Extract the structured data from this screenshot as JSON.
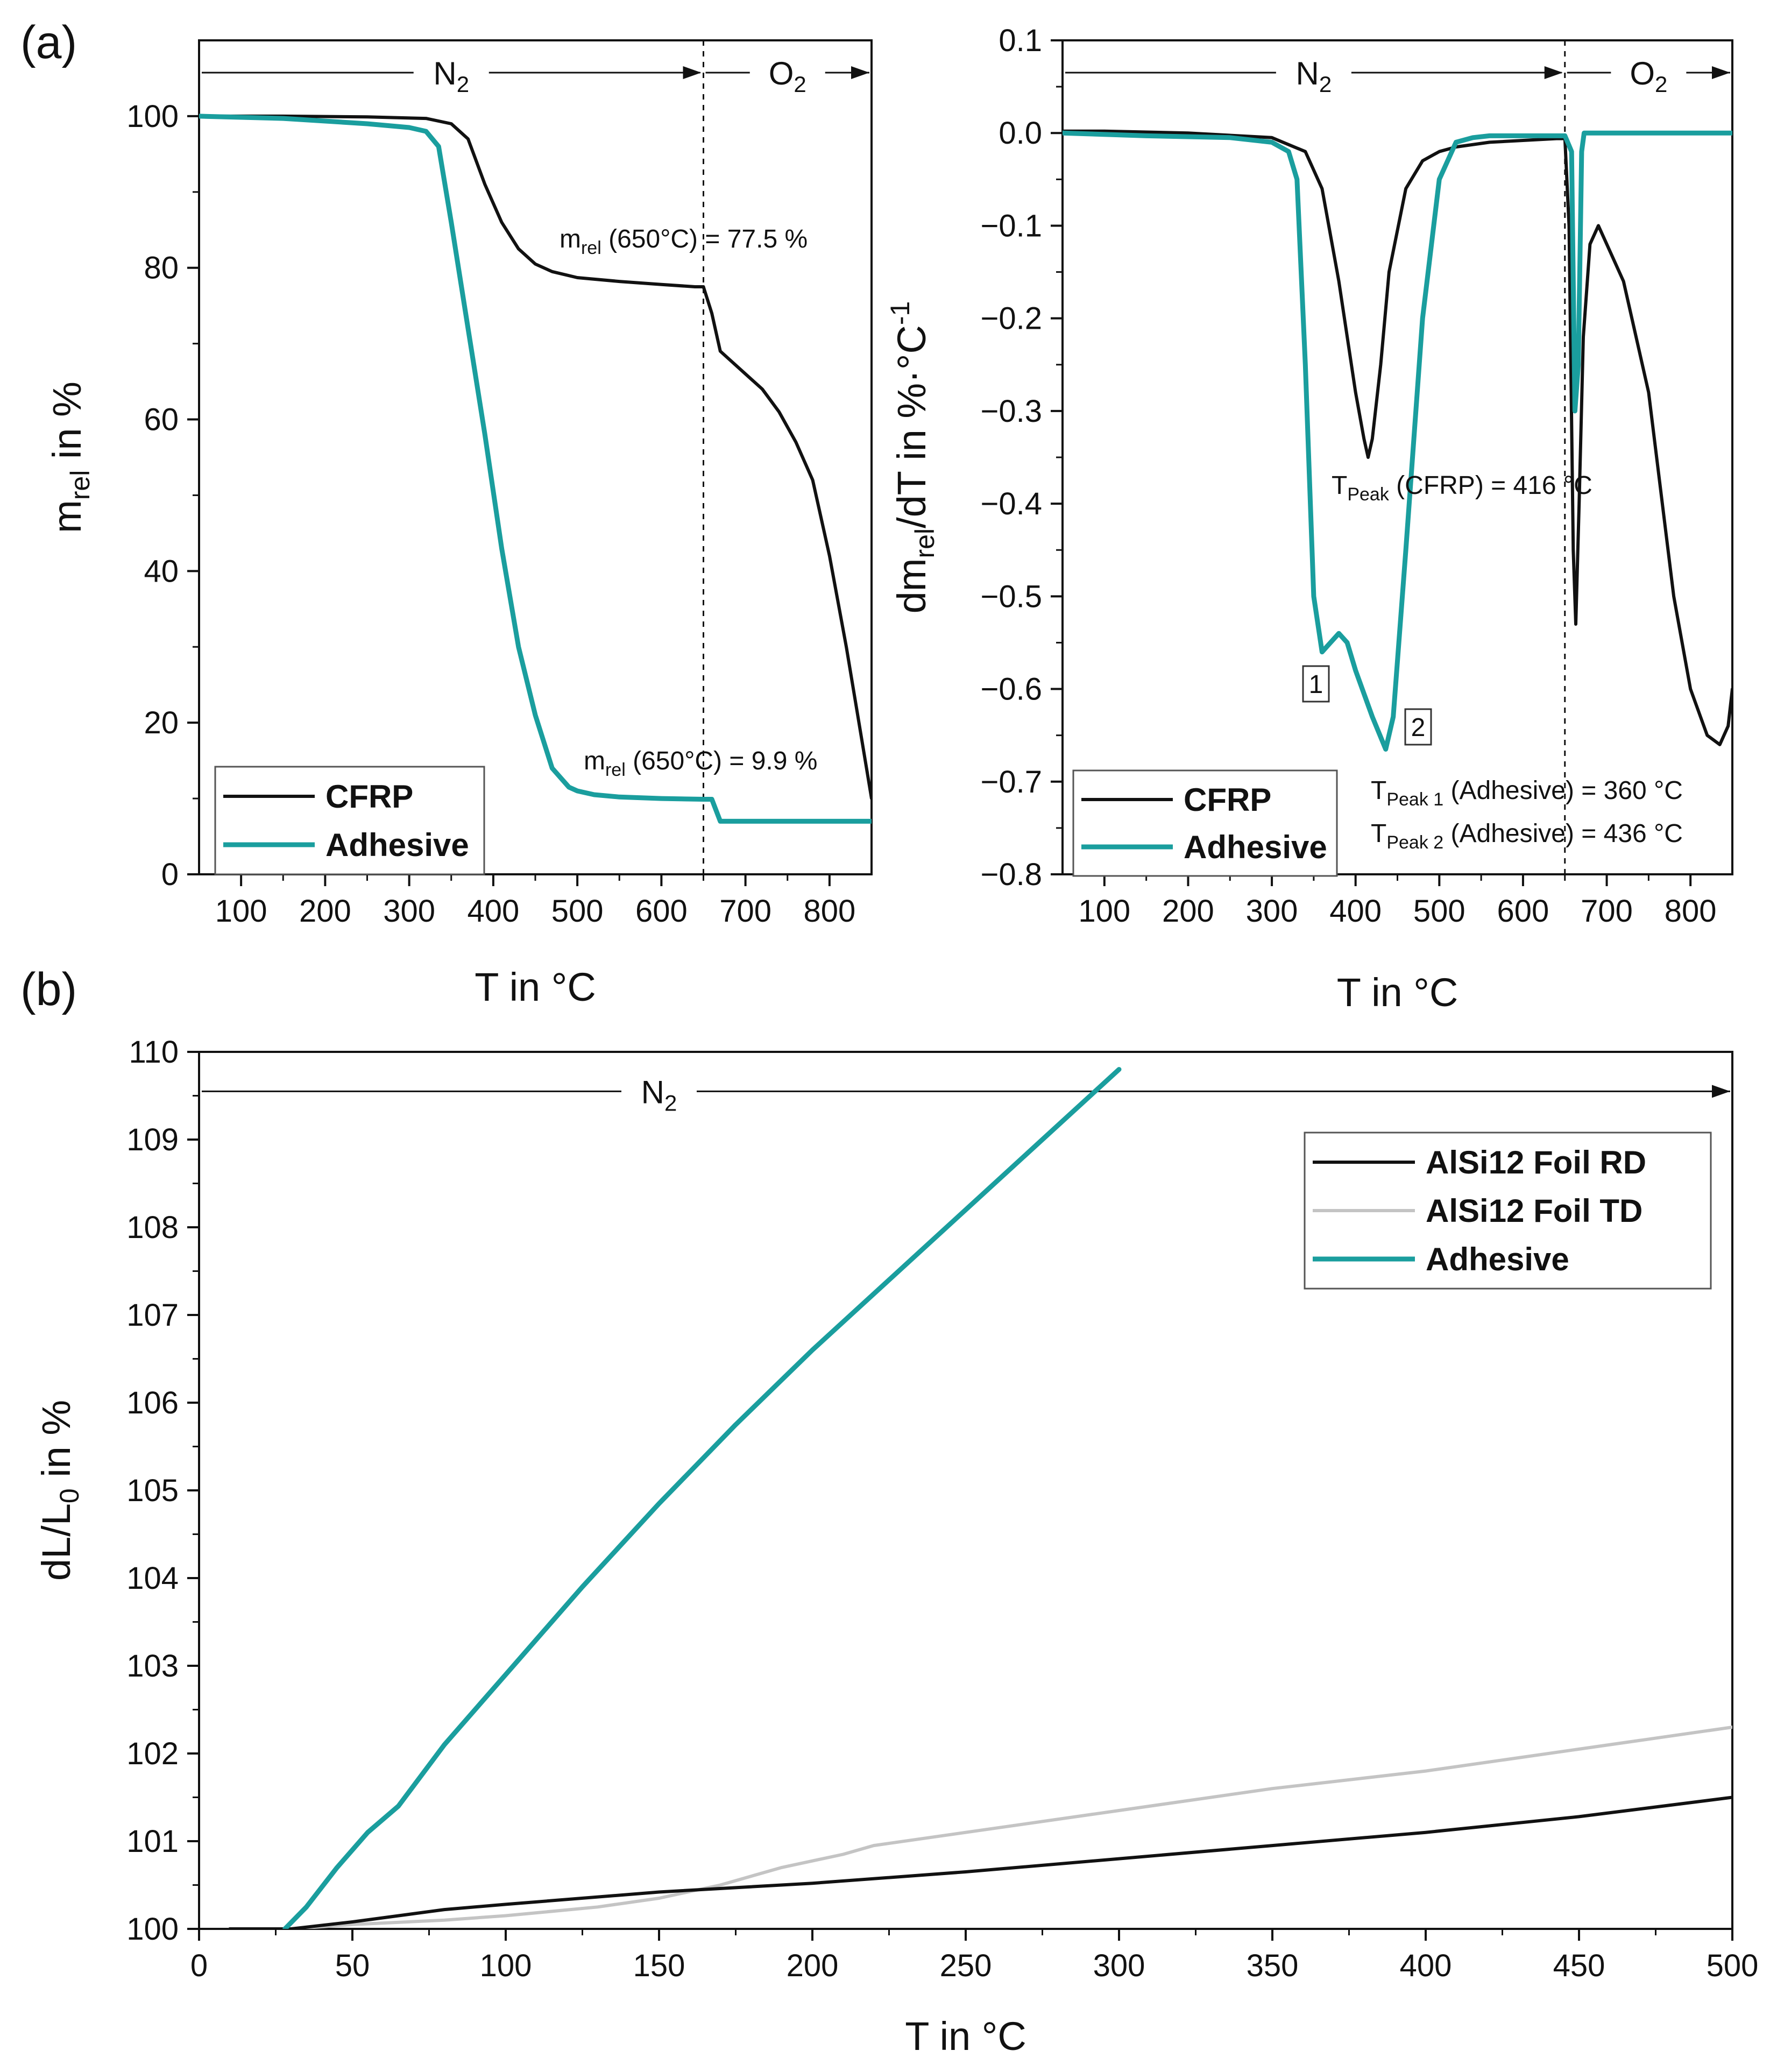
{
  "panels": {
    "a": "(a)",
    "b": "(b)"
  },
  "colors": {
    "cfrp": "#111111",
    "adhesive": "#1a9e9e",
    "foil_rd": "#111111",
    "foil_td": "#c4c4c4",
    "axis": "#111111"
  },
  "chart_data": [
    {
      "id": "tga",
      "type": "line",
      "xlabel": "T in °C",
      "ylabel": {
        "base": "m",
        "sub": "rel",
        "rest": " in %"
      },
      "xlim": [
        50,
        850
      ],
      "ylim": [
        0,
        110
      ],
      "xticks": [
        100,
        200,
        300,
        400,
        500,
        600,
        700,
        800
      ],
      "yticks": [
        0,
        20,
        40,
        60,
        80,
        100
      ],
      "switch_T": 650,
      "atmosphere": {
        "left": {
          "base": "N",
          "sub": "2"
        },
        "right": {
          "base": "O",
          "sub": "2"
        }
      },
      "legend": [
        "CFRP",
        "Adhesive"
      ],
      "series": [
        {
          "name": "CFRP",
          "x": [
            50,
            150,
            250,
            320,
            350,
            370,
            390,
            410,
            430,
            450,
            470,
            500,
            550,
            600,
            640,
            650,
            660,
            670,
            680,
            700,
            720,
            740,
            760,
            780,
            800,
            820,
            835,
            850
          ],
          "y": [
            100,
            100,
            99.9,
            99.7,
            99,
            97,
            91,
            86,
            82.5,
            80.5,
            79.5,
            78.7,
            78.2,
            77.8,
            77.5,
            77.5,
            74,
            69,
            68,
            66,
            64,
            61,
            57,
            52,
            42,
            30,
            20,
            10
          ]
        },
        {
          "name": "Adhesive",
          "x": [
            50,
            150,
            250,
            300,
            320,
            335,
            350,
            370,
            390,
            410,
            430,
            450,
            470,
            490,
            500,
            520,
            550,
            600,
            650,
            660,
            670,
            680,
            700,
            750,
            800,
            850
          ],
          "y": [
            100,
            99.7,
            99,
            98.5,
            98,
            96,
            86,
            72,
            58,
            43,
            30,
            21,
            14,
            11.5,
            11,
            10.5,
            10.2,
            10,
            9.9,
            9.9,
            7,
            7,
            7,
            7,
            7,
            7
          ]
        }
      ],
      "annotations": [
        {
          "base": "m",
          "sub": "rel",
          "rest": " (650°C) = 77.5 %"
        },
        {
          "base": "m",
          "sub": "rel",
          "rest": " (650°C) = 9.9 %"
        }
      ]
    },
    {
      "id": "dtg",
      "type": "line",
      "xlabel": "T in °C",
      "ylabel": {
        "p1": "dm",
        "sub": "rel",
        "p2": "/dT in %·°C",
        "sup": "-1"
      },
      "xlim": [
        50,
        850
      ],
      "ylim": [
        -0.8,
        0.1
      ],
      "xticks": [
        100,
        200,
        300,
        400,
        500,
        600,
        700,
        800
      ],
      "yticks": [
        0.1,
        0.0,
        -0.1,
        -0.2,
        -0.3,
        -0.4,
        -0.5,
        -0.6,
        -0.7,
        -0.8
      ],
      "ytick_labels": [
        "0.1",
        "0.0",
        "−0.1",
        "−0.2",
        "−0.3",
        "−0.4",
        "−0.5",
        "−0.6",
        "−0.7",
        "−0.8"
      ],
      "switch_T": 650,
      "atmosphere": {
        "left": {
          "base": "N",
          "sub": "2"
        },
        "right": {
          "base": "O",
          "sub": "2"
        }
      },
      "legend": [
        "CFRP",
        "Adhesive"
      ],
      "series": [
        {
          "name": "CFRP",
          "x": [
            50,
            100,
            200,
            300,
            340,
            360,
            380,
            400,
            410,
            415,
            420,
            430,
            440,
            460,
            480,
            500,
            520,
            560,
            600,
            640,
            650,
            655,
            660,
            663,
            667,
            672,
            680,
            690,
            700,
            720,
            750,
            780,
            800,
            820,
            835,
            845,
            850
          ],
          "y": [
            0.002,
            0.002,
            0,
            -0.005,
            -0.02,
            -0.06,
            -0.16,
            -0.28,
            -0.33,
            -0.35,
            -0.33,
            -0.25,
            -0.15,
            -0.06,
            -0.03,
            -0.02,
            -0.015,
            -0.01,
            -0.008,
            -0.006,
            -0.006,
            -0.1,
            -0.45,
            -0.53,
            -0.4,
            -0.22,
            -0.12,
            -0.1,
            -0.12,
            -0.16,
            -0.28,
            -0.5,
            -0.6,
            -0.65,
            -0.66,
            -0.64,
            -0.6
          ]
        },
        {
          "name": "Adhesive",
          "x": [
            50,
            150,
            250,
            300,
            320,
            330,
            340,
            350,
            360,
            370,
            380,
            390,
            400,
            420,
            436,
            445,
            460,
            480,
            500,
            520,
            540,
            560,
            600,
            650,
            658,
            662,
            666,
            670,
            673,
            700,
            800,
            850
          ],
          "y": [
            0,
            -0.003,
            -0.005,
            -0.01,
            -0.02,
            -0.05,
            -0.25,
            -0.5,
            -0.56,
            -0.55,
            -0.54,
            -0.55,
            -0.58,
            -0.63,
            -0.665,
            -0.63,
            -0.45,
            -0.2,
            -0.05,
            -0.01,
            -0.005,
            -0.003,
            -0.003,
            -0.003,
            -0.02,
            -0.3,
            -0.25,
            -0.02,
            0,
            0,
            0,
            0
          ]
        }
      ],
      "annotations": [
        {
          "base": "T",
          "sub": "Peak",
          "rest": " (CFRP) = 416 °C"
        },
        {
          "base": "T",
          "sub": "Peak 1",
          "rest": " (Adhesive) = 360 °C"
        },
        {
          "base": "T",
          "sub": "Peak 2",
          "rest": " (Adhesive) = 436 °C"
        }
      ],
      "peak_labels": [
        "1",
        "2"
      ]
    },
    {
      "id": "dil",
      "type": "line",
      "xlabel": "T in °C",
      "ylabel": {
        "p1": "dL/L",
        "sub": "0",
        "p2": " in %"
      },
      "xlim": [
        0,
        500
      ],
      "ylim": [
        100,
        110
      ],
      "xticks": [
        0,
        50,
        100,
        150,
        200,
        250,
        300,
        350,
        400,
        450,
        500
      ],
      "yticks": [
        100,
        101,
        102,
        103,
        104,
        105,
        106,
        107,
        108,
        109,
        110
      ],
      "atmosphere": {
        "left": {
          "base": "N",
          "sub": "2"
        }
      },
      "legend": [
        "AlSi12 Foil RD",
        "AlSi12 Foil TD",
        "Adhesive"
      ],
      "series": [
        {
          "name": "AlSi12 Foil RD",
          "x": [
            10,
            30,
            50,
            80,
            100,
            150,
            200,
            250,
            300,
            350,
            400,
            450,
            500
          ],
          "y": [
            100,
            100,
            100.08,
            100.22,
            100.28,
            100.42,
            100.52,
            100.65,
            100.8,
            100.95,
            101.1,
            101.28,
            101.5
          ]
        },
        {
          "name": "AlSi12 Foil TD",
          "x": [
            10,
            30,
            50,
            80,
            100,
            130,
            150,
            170,
            190,
            210,
            220,
            250,
            300,
            350,
            400,
            450,
            500
          ],
          "y": [
            100,
            100,
            100.05,
            100.1,
            100.15,
            100.25,
            100.35,
            100.5,
            100.7,
            100.85,
            100.95,
            101.1,
            101.35,
            101.6,
            101.8,
            102.05,
            102.3
          ]
        },
        {
          "name": "Adhesive",
          "x": [
            28,
            35,
            45,
            55,
            65,
            80,
            100,
            125,
            150,
            175,
            200,
            225,
            250,
            275,
            300
          ],
          "y": [
            100,
            100.25,
            100.7,
            101.1,
            101.4,
            102.1,
            102.9,
            103.9,
            104.85,
            105.75,
            106.6,
            107.4,
            108.2,
            109.0,
            109.8
          ]
        }
      ]
    }
  ]
}
